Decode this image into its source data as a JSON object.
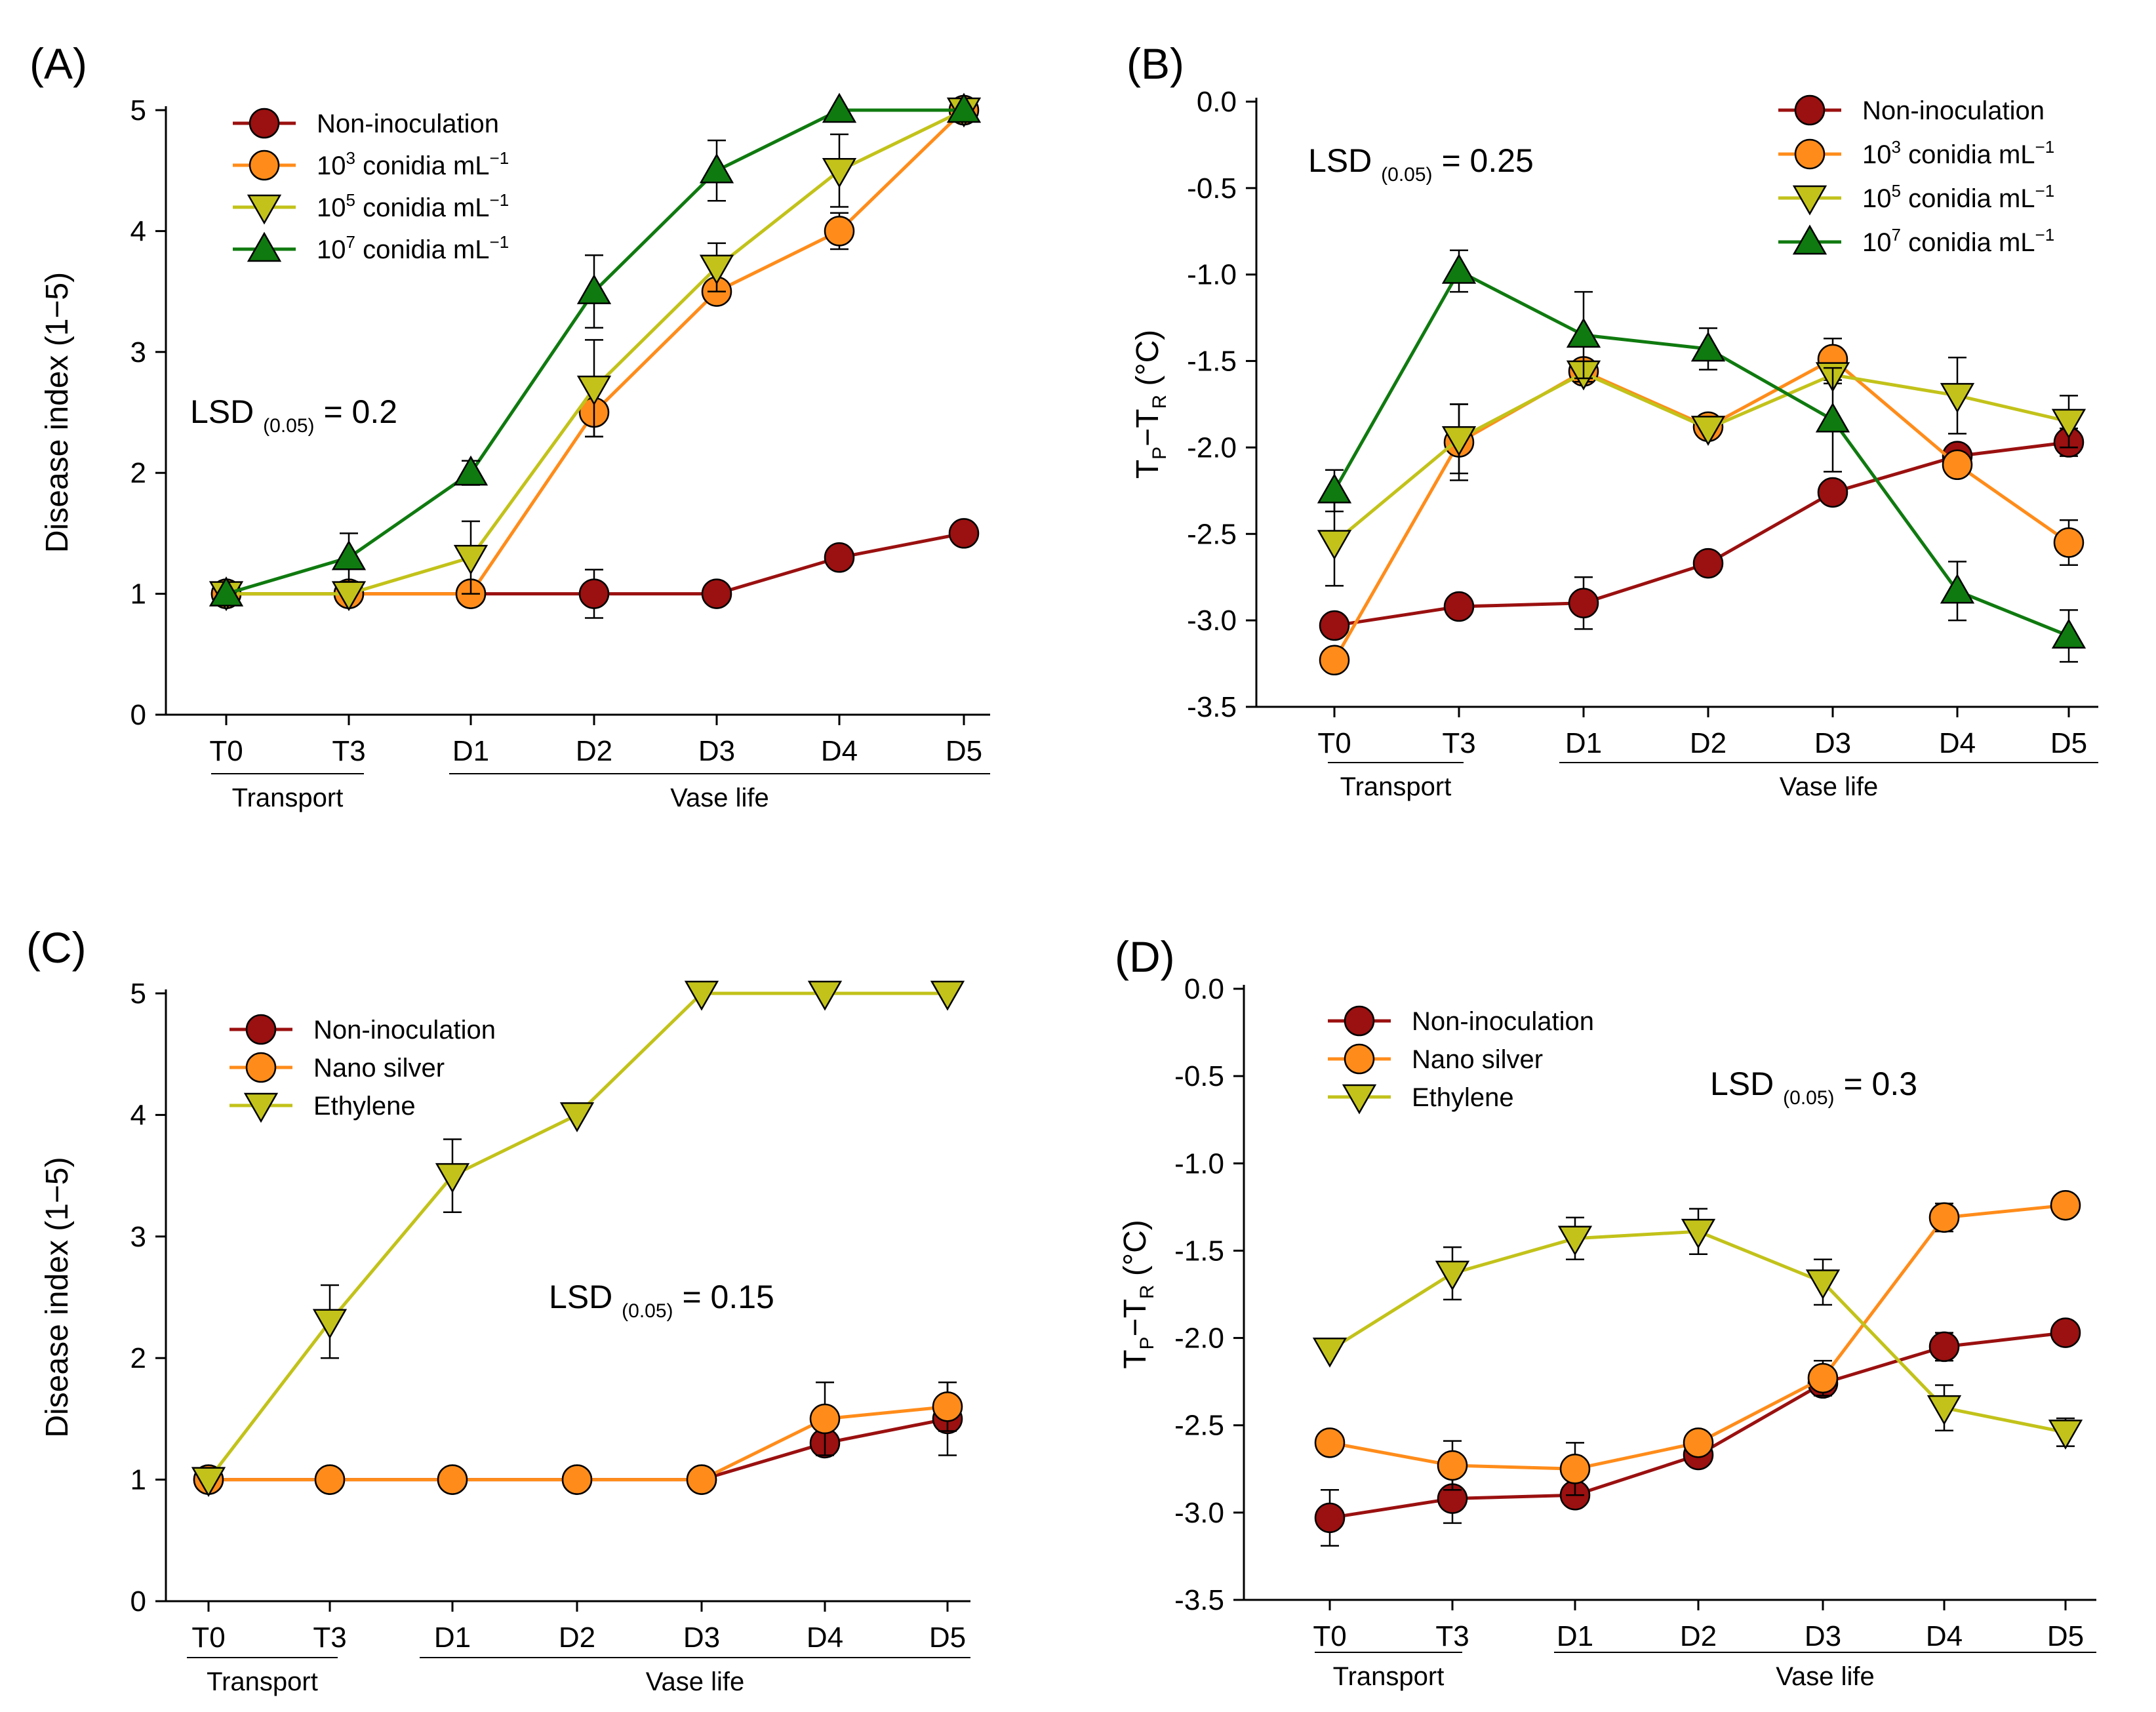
{
  "figure": {
    "categories": [
      "T0",
      "T3",
      "D1",
      "D2",
      "D3",
      "D4",
      "D5"
    ],
    "group_labels": {
      "transport": "Transport",
      "vase_life": "Vase life"
    },
    "colors": {
      "non_inoculation": "#9b1010",
      "orange": "#ff8c1a",
      "yellowgreen": "#c2c21a",
      "green": "#0f7a0f"
    }
  },
  "chart_data": [
    {
      "panel": "(A)",
      "type": "line",
      "ylabel": "Disease index (1−5)",
      "ylim": [
        0,
        5
      ],
      "yticks": [
        "0",
        "1",
        "2",
        "3",
        "4",
        "5"
      ],
      "categories": [
        "T0",
        "T3",
        "D1",
        "D2",
        "D3",
        "D4",
        "D5"
      ],
      "lsd": {
        "prefix": "LSD",
        "sub": "(0.05)",
        "value": "= 0.2"
      },
      "legend_position": "top-left",
      "series": [
        {
          "name": "Non-inoculation",
          "name_base": "Non-inoculation",
          "name_sup": "",
          "name_tail": "",
          "marker": "circle",
          "color_key": "non_inoculation",
          "values": [
            1,
            1,
            1,
            1,
            1,
            1.3,
            1.5
          ],
          "errors": [
            0,
            0,
            0,
            0.2,
            0,
            0,
            0
          ]
        },
        {
          "name": "10^3 conidia mL^-1",
          "name_base": "10",
          "name_sup": "3",
          "name_tail": " conidia mL",
          "name_sup2": "−1",
          "marker": "circle",
          "color_key": "orange",
          "values": [
            1,
            1,
            1,
            2.5,
            3.5,
            4.0,
            5.0
          ],
          "errors": [
            0,
            0,
            0,
            0.2,
            0,
            0.15,
            0
          ]
        },
        {
          "name": "10^5 conidia mL^-1",
          "name_base": "10",
          "name_sup": "5",
          "name_tail": " conidia mL",
          "name_sup2": "−1",
          "marker": "triangle-down",
          "color_key": "yellowgreen",
          "values": [
            1,
            1,
            1.3,
            2.7,
            3.7,
            4.5,
            5.0
          ],
          "errors": [
            0,
            0,
            0.3,
            0.4,
            0.2,
            0.3,
            0
          ]
        },
        {
          "name": "10^7 conidia mL^-1",
          "name_base": "10",
          "name_sup": "7",
          "name_tail": " conidia mL",
          "name_sup2": "−1",
          "marker": "triangle-up",
          "color_key": "green",
          "values": [
            1,
            1.3,
            2.0,
            3.5,
            4.5,
            5.0,
            5.0
          ],
          "errors": [
            0,
            0.2,
            0.1,
            0.3,
            0.25,
            0,
            0
          ]
        }
      ]
    },
    {
      "panel": "(B)",
      "type": "line",
      "ylabel": "TP−TR (°C)",
      "ylim": [
        -3.5,
        0
      ],
      "yticks": [
        "-3.5",
        "-3.0",
        "-2.5",
        "-2.0",
        "-1.5",
        "-1.0",
        "-0.5",
        "0.0"
      ],
      "categories": [
        "T0",
        "T3",
        "D1",
        "D2",
        "D3",
        "D4",
        "D5"
      ],
      "lsd": {
        "prefix": "LSD",
        "sub": "(0.05)",
        "value": "= 0.25"
      },
      "legend_position": "top-right",
      "series": [
        {
          "name": "Non-inoculation",
          "name_base": "Non-inoculation",
          "name_sup": "",
          "name_tail": "",
          "marker": "circle",
          "color_key": "non_inoculation",
          "values": [
            -3.03,
            -2.92,
            -2.9,
            -2.67,
            -2.26,
            -2.05,
            -1.97
          ],
          "errors": [
            0,
            0,
            0.15,
            0,
            0,
            0,
            0.08
          ]
        },
        {
          "name": "10^3 conidia mL^-1",
          "name_base": "10",
          "name_sup": "3",
          "name_tail": " conidia mL",
          "name_sup2": "−1",
          "marker": "circle",
          "color_key": "orange",
          "values": [
            -3.23,
            -1.97,
            -1.56,
            -1.88,
            -1.49,
            -2.1,
            -2.55
          ],
          "errors": [
            0,
            0.22,
            0,
            0,
            0.12,
            0,
            0.13
          ]
        },
        {
          "name": "10^5 conidia mL^-1",
          "name_base": "10",
          "name_sup": "5",
          "name_tail": " conidia mL",
          "name_sup2": "−1",
          "marker": "triangle-down",
          "color_key": "yellowgreen",
          "values": [
            -2.55,
            -1.95,
            -1.57,
            -1.89,
            -1.58,
            -1.7,
            -1.85
          ],
          "errors": [
            0.25,
            0.2,
            0.05,
            0,
            0.05,
            0.22,
            0.15
          ]
        },
        {
          "name": "10^7 conidia mL^-1",
          "name_base": "10",
          "name_sup": "7",
          "name_tail": " conidia mL",
          "name_sup2": "−1",
          "marker": "triangle-up",
          "color_key": "green",
          "values": [
            -2.25,
            -0.98,
            -1.35,
            -1.43,
            -1.84,
            -2.83,
            -3.09
          ],
          "errors": [
            0.12,
            0.12,
            0.25,
            0.12,
            0.3,
            0.17,
            0.15
          ]
        }
      ]
    },
    {
      "panel": "(C)",
      "type": "line",
      "ylabel": "Disease index (1−5)",
      "ylim": [
        0,
        5
      ],
      "yticks": [
        "0",
        "1",
        "2",
        "3",
        "4",
        "5"
      ],
      "categories": [
        "T0",
        "T3",
        "D1",
        "D2",
        "D3",
        "D4",
        "D5"
      ],
      "lsd": {
        "prefix": "LSD",
        "sub": "(0.05)",
        "value": "= 0.15"
      },
      "legend_position": "top-left",
      "series": [
        {
          "name": "Non-inoculation",
          "name_base": "Non-inoculation",
          "name_sup": "",
          "name_tail": "",
          "marker": "circle",
          "color_key": "non_inoculation",
          "values": [
            1,
            1,
            1,
            1,
            1,
            1.3,
            1.5
          ],
          "errors": [
            0,
            0,
            0,
            0,
            0,
            0,
            0.3
          ]
        },
        {
          "name": "Nano silver",
          "name_base": "Nano silver",
          "name_sup": "",
          "name_tail": "",
          "marker": "circle",
          "color_key": "orange",
          "values": [
            1,
            1,
            1,
            1,
            1,
            1.5,
            1.6
          ],
          "errors": [
            0,
            0,
            0,
            0,
            0,
            0.3,
            0.2
          ]
        },
        {
          "name": "Ethylene",
          "name_base": "Ethylene",
          "name_sup": "",
          "name_tail": "",
          "marker": "triangle-down",
          "color_key": "yellowgreen",
          "values": [
            1,
            2.3,
            3.5,
            4.0,
            5.0,
            5.0,
            5.0
          ],
          "errors": [
            0,
            0.3,
            0.3,
            0,
            0,
            0,
            0
          ]
        }
      ]
    },
    {
      "panel": "(D)",
      "type": "line",
      "ylabel": "TP−TR (°C)",
      "ylim": [
        -3.5,
        0
      ],
      "yticks": [
        "-3.5",
        "-3.0",
        "-2.5",
        "-2.0",
        "-1.5",
        "-1.0",
        "-0.5",
        "0.0"
      ],
      "categories": [
        "T0",
        "T3",
        "D1",
        "D2",
        "D3",
        "D4",
        "D5"
      ],
      "lsd": {
        "prefix": "LSD",
        "sub": "(0.05)",
        "value": "= 0.3"
      },
      "legend_position": "top-left",
      "series": [
        {
          "name": "Non-inoculation",
          "name_base": "Non-inoculation",
          "name_sup": "",
          "name_tail": "",
          "marker": "circle",
          "color_key": "non_inoculation",
          "values": [
            -3.03,
            -2.92,
            -2.9,
            -2.67,
            -2.26,
            -2.05,
            -1.97
          ],
          "errors": [
            0.16,
            0.14,
            0,
            0,
            0,
            0.08,
            0
          ]
        },
        {
          "name": "Nano silver",
          "name_base": "Nano silver",
          "name_sup": "",
          "name_tail": "",
          "marker": "circle",
          "color_key": "orange",
          "values": [
            -2.6,
            -2.73,
            -2.75,
            -2.6,
            -2.23,
            -1.31,
            -1.24
          ],
          "errors": [
            0,
            0.14,
            0.15,
            0,
            0.1,
            0.08,
            0
          ]
        },
        {
          "name": "Ethylene",
          "name_base": "Ethylene",
          "name_sup": "",
          "name_tail": "",
          "marker": "triangle-down",
          "color_key": "yellowgreen",
          "values": [
            -2.07,
            -1.63,
            -1.43,
            -1.39,
            -1.68,
            -2.4,
            -2.54
          ],
          "errors": [
            0,
            0.15,
            0.12,
            0.13,
            0.13,
            0.13,
            0.08
          ]
        }
      ]
    }
  ]
}
